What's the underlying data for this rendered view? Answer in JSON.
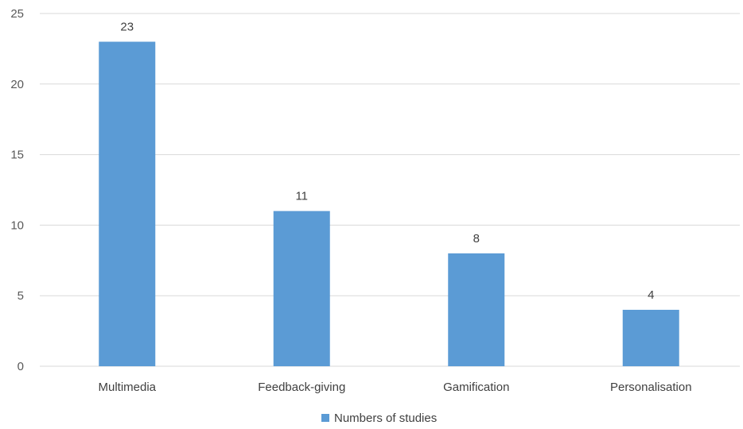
{
  "chart_data": {
    "type": "bar",
    "categories": [
      "Multimedia",
      "Feedback-giving",
      "Gamification",
      "Personalisation"
    ],
    "series": [
      {
        "name": "Numbers of studies",
        "values": [
          23,
          11,
          8,
          4
        ],
        "color": "#5b9bd5"
      }
    ],
    "yticks": [
      0,
      5,
      10,
      15,
      20,
      25
    ],
    "ylim": [
      0,
      25
    ],
    "grid": true,
    "data_labels": true,
    "legend_position": "bottom",
    "gridline_color": "#d9d9d9",
    "axis_color": "#d9d9d9"
  }
}
